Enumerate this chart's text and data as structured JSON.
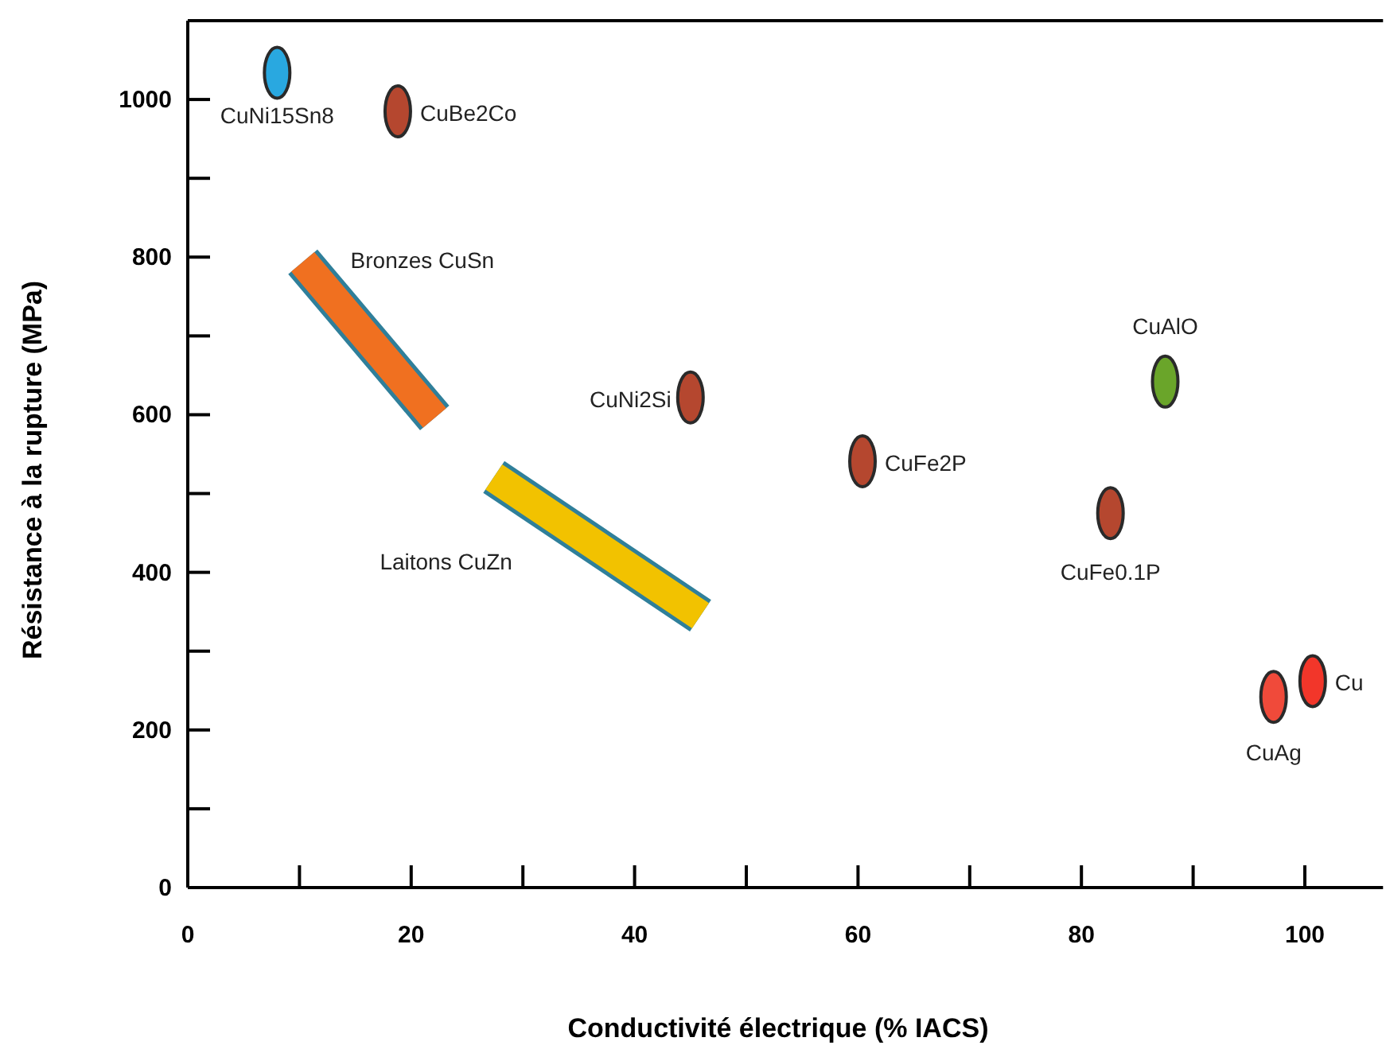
{
  "chart_data": {
    "type": "scatter",
    "xlabel": "Conductivité électrique (% IACS)",
    "ylabel": "Résistance à la rupture (MPa)",
    "xlim": [
      0,
      107
    ],
    "ylim": [
      0,
      1100
    ],
    "xticks": [
      0,
      {
        "value": 10,
        "label": null
      },
      20,
      {
        "value": 30,
        "label": null
      },
      40,
      {
        "value": 50,
        "label": null
      },
      60,
      {
        "value": 70,
        "label": null
      },
      80,
      {
        "value": 90,
        "label": null
      },
      100
    ],
    "yticks": [
      0,
      {
        "value": 100,
        "label": null
      },
      200,
      {
        "value": 300,
        "label": null
      },
      400,
      {
        "value": 500,
        "label": null
      },
      600,
      {
        "value": 700,
        "label": null
      },
      800,
      {
        "value": 900,
        "label": null
      },
      1000
    ],
    "grid": false,
    "marker": "circle",
    "series": [
      {
        "name": "CuNi15Sn8",
        "color": "#29a8e0",
        "x": [
          8
        ],
        "values": [
          1034
        ]
      },
      {
        "name": "CuBe2Co",
        "color": "#b5472f",
        "x": [
          18.8
        ],
        "values": [
          985
        ]
      },
      {
        "name": "Bronzes CuSn",
        "type": "line",
        "marker": "none",
        "color": "#f07020",
        "x": [
          10.3,
          22.1
        ],
        "values": [
          794,
          596
        ]
      },
      {
        "name": "Laitons CuZn",
        "type": "line",
        "marker": "none",
        "color": "#f2c200",
        "x": [
          27.4,
          45.9
        ],
        "values": [
          521,
          345
        ]
      },
      {
        "name": "CuNi2Si",
        "color": "#b5472f",
        "x": [
          45
        ],
        "values": [
          622
        ]
      },
      {
        "name": "CuFe2P",
        "color": "#b5472f",
        "x": [
          60.4
        ],
        "values": [
          541
        ]
      },
      {
        "name": "CuAlO",
        "color": "#6aa52a",
        "x": [
          87.5
        ],
        "values": [
          642
        ]
      },
      {
        "name": "CuFe0.1P",
        "color": "#b5472f",
        "x": [
          82.6
        ],
        "values": [
          475
        ]
      },
      {
        "name": "CuAg",
        "color": "#f04a3a",
        "x": [
          97.2
        ],
        "values": [
          242
        ]
      },
      {
        "name": "Cu",
        "color": "#f2362a",
        "x": [
          100.7
        ],
        "values": [
          262
        ]
      }
    ]
  }
}
